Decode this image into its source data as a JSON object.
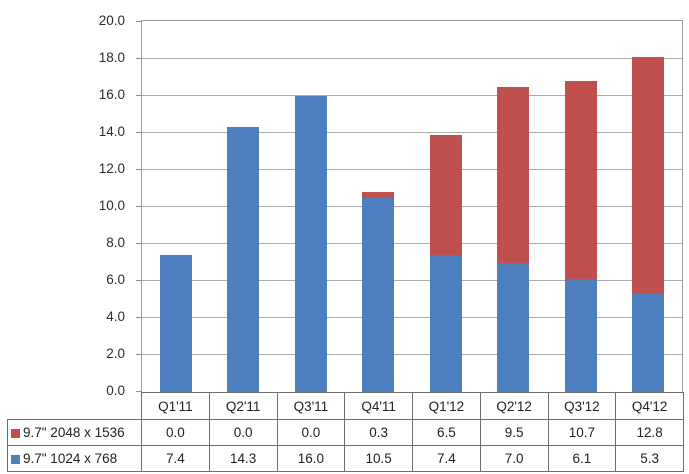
{
  "chart_data": {
    "type": "bar",
    "stacked": true,
    "title": "",
    "xlabel": "",
    "ylabel": "",
    "categories": [
      "Q1'11",
      "Q2'11",
      "Q3'11",
      "Q4'11",
      "Q1'12",
      "Q2'12",
      "Q3'12",
      "Q4'12"
    ],
    "series": [
      {
        "name": "9.7\" 2048 x 1536",
        "color": "#c0504d",
        "values": [
          0.0,
          0.0,
          0.0,
          0.3,
          6.5,
          9.5,
          10.7,
          12.8
        ]
      },
      {
        "name": "9.7\" 1024 x 768",
        "color": "#4d7fbe",
        "values": [
          7.4,
          14.3,
          16.0,
          10.5,
          7.4,
          7.0,
          6.1,
          5.3
        ]
      }
    ],
    "stack_order_bottom_first": [
      1,
      0
    ],
    "ylim": [
      0,
      20
    ],
    "ytick_step": 2,
    "ytick_labels": [
      "0.0",
      "2.0",
      "4.0",
      "6.0",
      "8.0",
      "10.0",
      "12.0",
      "14.0",
      "16.0",
      "18.0",
      "20.0"
    ],
    "grid": true,
    "legend_position": "data-table-left",
    "data_table_shown": true,
    "value_format_decimals": 1,
    "colors": {
      "gridline": "#acacac",
      "plot_border": "#9a9a9a",
      "table_border": "#6f6f6f",
      "text": "#2b2b2b",
      "background": "#ffffff"
    }
  }
}
